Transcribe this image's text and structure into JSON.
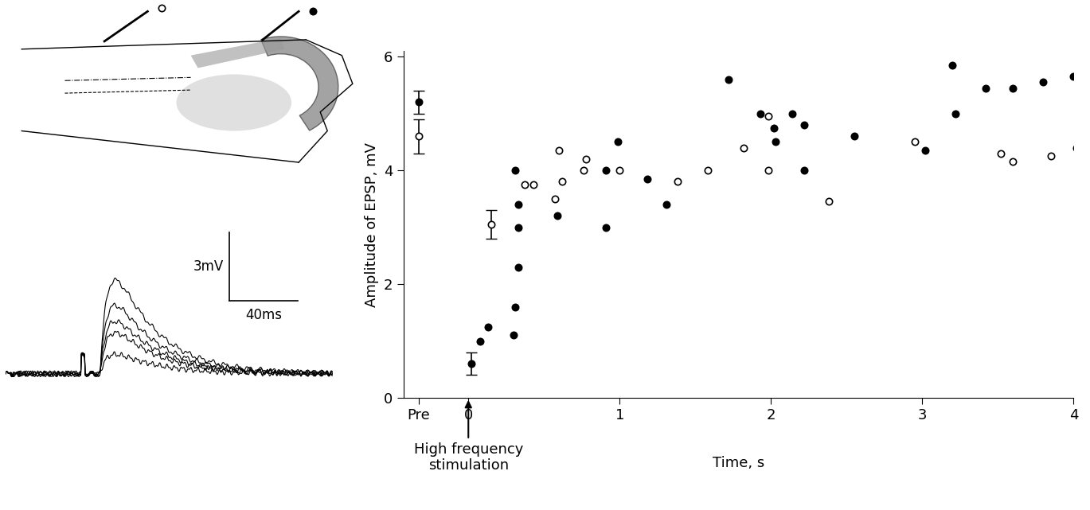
{
  "chart_data": {
    "type": "scatter",
    "xlabel": "Time, s",
    "ylabel": "Amplitude of EPSP, mV",
    "annotation": "High frequency\nstimulation",
    "xlim": [
      -0.43,
      4
    ],
    "ylim": [
      0,
      6.1
    ],
    "xticks": [
      {
        "value": -0.33,
        "label": "Pre"
      },
      0,
      1,
      2,
      3,
      4
    ],
    "yticks": [
      0,
      2,
      4,
      6
    ],
    "series": [
      {
        "color": "#000000",
        "marker": "filled circle",
        "x": [
          -0.33,
          0.02,
          0.08,
          0.13,
          0.3,
          0.31,
          0.33,
          0.33,
          0.33,
          0.31,
          0.59,
          0.91,
          0.91,
          0.99,
          1.18,
          1.31,
          1.72,
          1.93,
          2.02,
          2.03,
          2.14,
          2.22,
          2.22,
          2.55,
          3.02,
          3.2,
          3.22,
          3.42,
          3.6,
          3.8,
          4.0
        ],
        "values": [
          5.2,
          0.6,
          1.0,
          1.25,
          1.1,
          1.6,
          2.3,
          3.0,
          3.4,
          4.0,
          3.2,
          3.0,
          4.0,
          4.5,
          3.85,
          3.4,
          5.6,
          5.0,
          4.75,
          4.5,
          5.0,
          4.0,
          4.8,
          4.6,
          4.35,
          5.85,
          5.0,
          5.45,
          5.45,
          5.55,
          5.65
        ],
        "errors": [
          0.2,
          0.2,
          null,
          null,
          null,
          null,
          null,
          null,
          null,
          null,
          null,
          null,
          null,
          null,
          null,
          null,
          null,
          null,
          null,
          null,
          null,
          null,
          null,
          null,
          null,
          null,
          null,
          null,
          null,
          null,
          null
        ]
      },
      {
        "color": "#000000",
        "marker": "open circle",
        "x": [
          -0.33,
          0.15,
          0.37,
          0.43,
          0.57,
          0.6,
          0.62,
          0.76,
          0.78,
          1.0,
          1.38,
          1.58,
          1.82,
          1.98,
          1.98,
          2.38,
          2.95,
          3.52,
          3.6,
          3.85,
          4.02
        ],
        "values": [
          4.6,
          3.05,
          3.75,
          3.75,
          3.5,
          4.35,
          3.8,
          4.0,
          4.2,
          4.0,
          3.8,
          4.0,
          4.4,
          4.0,
          4.95,
          3.45,
          4.5,
          4.3,
          4.15,
          4.25,
          4.4
        ],
        "errors": [
          0.3,
          0.25,
          null,
          null,
          null,
          null,
          null,
          null,
          null,
          null,
          null,
          null,
          null,
          null,
          null,
          null,
          null,
          null,
          null,
          null,
          null
        ]
      }
    ],
    "traces": {
      "amplitudes": [
        4.1,
        3.0,
        2.3,
        1.8,
        0.85
      ],
      "scale_bar": {
        "amplitude": 3,
        "amplitude_label": "3mV",
        "duration": 40,
        "duration_label": "40ms"
      }
    }
  }
}
